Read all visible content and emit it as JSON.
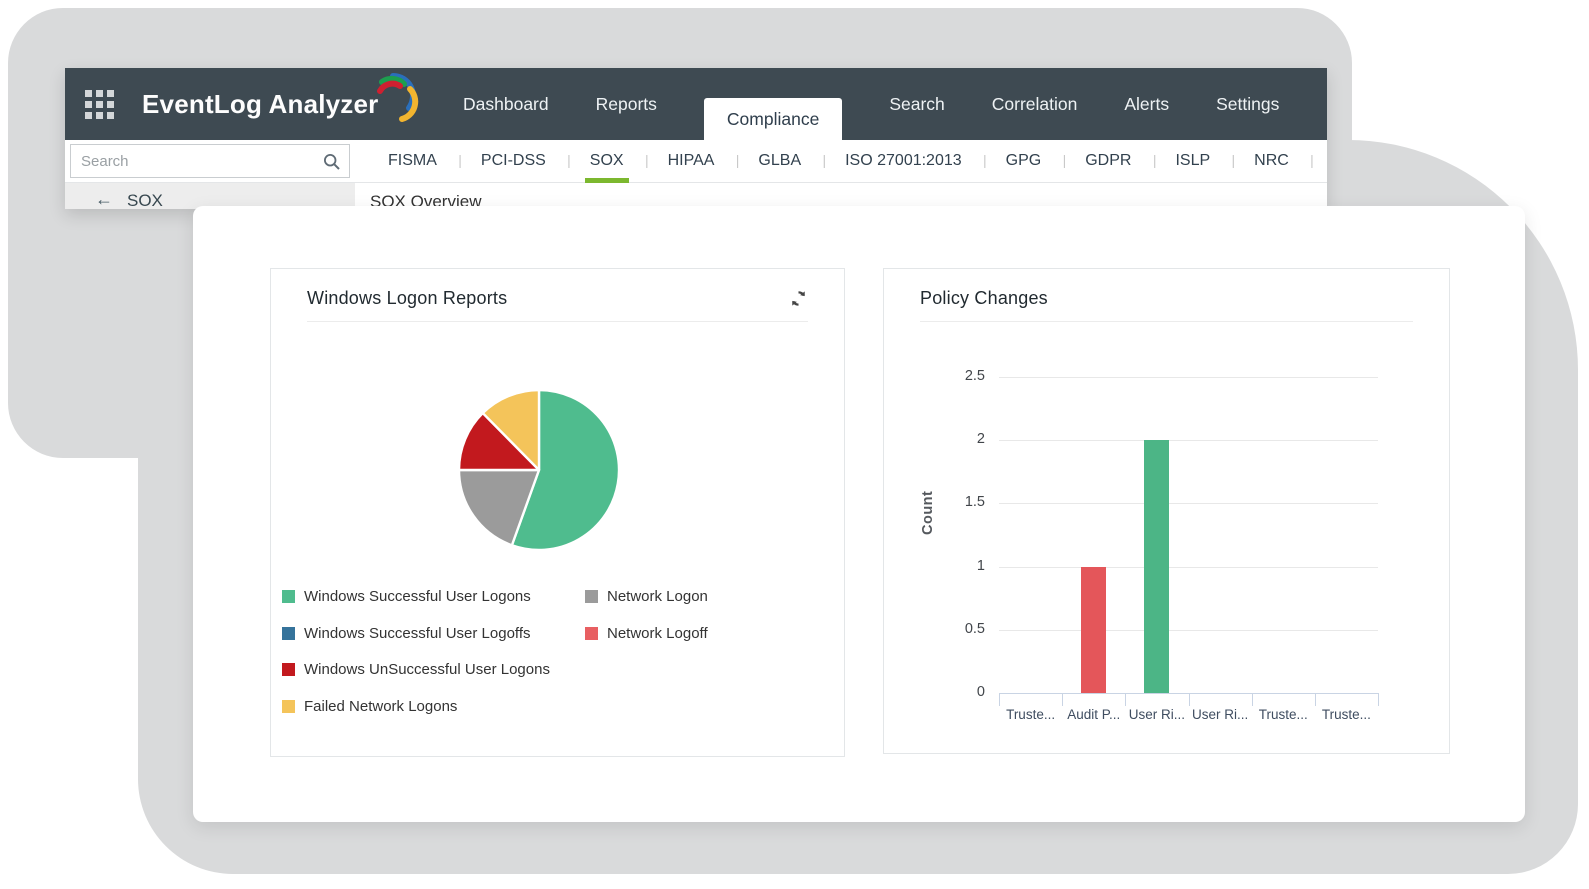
{
  "header": {
    "brand": "EventLog Analyzer",
    "nav": [
      {
        "label": "Dashboard",
        "active": false
      },
      {
        "label": "Reports",
        "active": false
      },
      {
        "label": "Compliance",
        "active": true
      },
      {
        "label": "Search",
        "active": false
      },
      {
        "label": "Correlation",
        "active": false
      },
      {
        "label": "Alerts",
        "active": false
      },
      {
        "label": "Settings",
        "active": false
      }
    ]
  },
  "compliance_tabs": [
    {
      "label": "FISMA",
      "active": false
    },
    {
      "label": "PCI-DSS",
      "active": false
    },
    {
      "label": "SOX",
      "active": true
    },
    {
      "label": "HIPAA",
      "active": false
    },
    {
      "label": "GLBA",
      "active": false
    },
    {
      "label": "ISO 27001:2013",
      "active": false
    },
    {
      "label": "GPG",
      "active": false
    },
    {
      "label": "GDPR",
      "active": false
    },
    {
      "label": "ISLP",
      "active": false
    },
    {
      "label": "NRC",
      "active": false
    }
  ],
  "sidebar": {
    "search_placeholder": "Search",
    "section_label": "SOX"
  },
  "content": {
    "page_title": "SOX Overview"
  },
  "chart_data": [
    {
      "type": "pie",
      "title": "Windows Logon Reports",
      "values_unit": "percent",
      "slices": [
        {
          "label": "Windows Successful User Logons",
          "value": 55.5,
          "color": "#4fbc8e"
        },
        {
          "label": "Network Logon",
          "value": 19.5,
          "color": "#9b9b9b"
        },
        {
          "label": "Windows UnSuccessful User Logons",
          "value": 12.6,
          "color": "#c2191e"
        },
        {
          "label": "Failed Network Logons",
          "value": 12.4,
          "color": "#f4c45a"
        }
      ],
      "legend_left": [
        {
          "label": "Windows Successful User Logons",
          "color": "#4fbc8e"
        },
        {
          "label": "Windows Successful User Logoffs",
          "color": "#35739b"
        },
        {
          "label": "Windows UnSuccessful User Logons",
          "color": "#c2191e"
        },
        {
          "label": "Failed Network Logons",
          "color": "#f4c45a"
        }
      ],
      "legend_right": [
        {
          "label": "Network Logon",
          "color": "#9b9b9b"
        },
        {
          "label": "Network Logoff",
          "color": "#e85f62"
        }
      ]
    },
    {
      "type": "bar",
      "title": "Policy Changes",
      "ylabel": "Count",
      "ylim": [
        0,
        2.5
      ],
      "yticks": [
        "0",
        "0.5",
        "1",
        "1.5",
        "2",
        "2.5"
      ],
      "categories": [
        "Truste...",
        "Audit P...",
        "User Ri...",
        "User Ri...",
        "Truste...",
        "Truste..."
      ],
      "values": [
        0,
        1,
        2,
        0,
        0,
        0
      ],
      "colors": [
        null,
        "#e4565a",
        "#4cb586",
        null,
        null,
        null
      ],
      "grid": true,
      "legend_position": "none"
    }
  ],
  "colors": {
    "header_bg": "#3e4a52",
    "active_tab_underline": "#7cb82f",
    "blob_gray": "#d9dadb",
    "axis": "#c9d4e4"
  }
}
